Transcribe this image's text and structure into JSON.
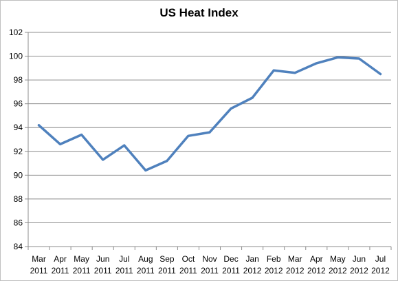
{
  "chart_data": {
    "type": "line",
    "title": "US Heat Index",
    "xlabel": "",
    "ylabel": "",
    "categories": [
      [
        "Mar",
        "2011"
      ],
      [
        "Apr",
        "2011"
      ],
      [
        "May",
        "2011"
      ],
      [
        "Jun",
        "2011"
      ],
      [
        "Jul",
        "2011"
      ],
      [
        "Aug",
        "2011"
      ],
      [
        "Sep",
        "2011"
      ],
      [
        "Oct",
        "2011"
      ],
      [
        "Nov",
        "2011"
      ],
      [
        "Dec",
        "2011"
      ],
      [
        "Jan",
        "2012"
      ],
      [
        "Feb",
        "2012"
      ],
      [
        "Mar",
        "2012"
      ],
      [
        "Apr",
        "2012"
      ],
      [
        "May",
        "2012"
      ],
      [
        "Jun",
        "2012"
      ],
      [
        "Jul",
        "2012"
      ]
    ],
    "series": [
      {
        "values": [
          94.2,
          92.6,
          93.4,
          91.3,
          92.5,
          90.4,
          91.2,
          93.3,
          93.6,
          95.6,
          96.5,
          98.8,
          98.6,
          99.4,
          99.9,
          99.8,
          98.5
        ],
        "color": "#4f81bd"
      }
    ],
    "ylim": [
      84,
      102
    ],
    "yticks": [
      "84",
      "86",
      "88",
      "90",
      "92",
      "94",
      "96",
      "98",
      "100",
      "102"
    ],
    "grid": true,
    "legend": "none"
  }
}
